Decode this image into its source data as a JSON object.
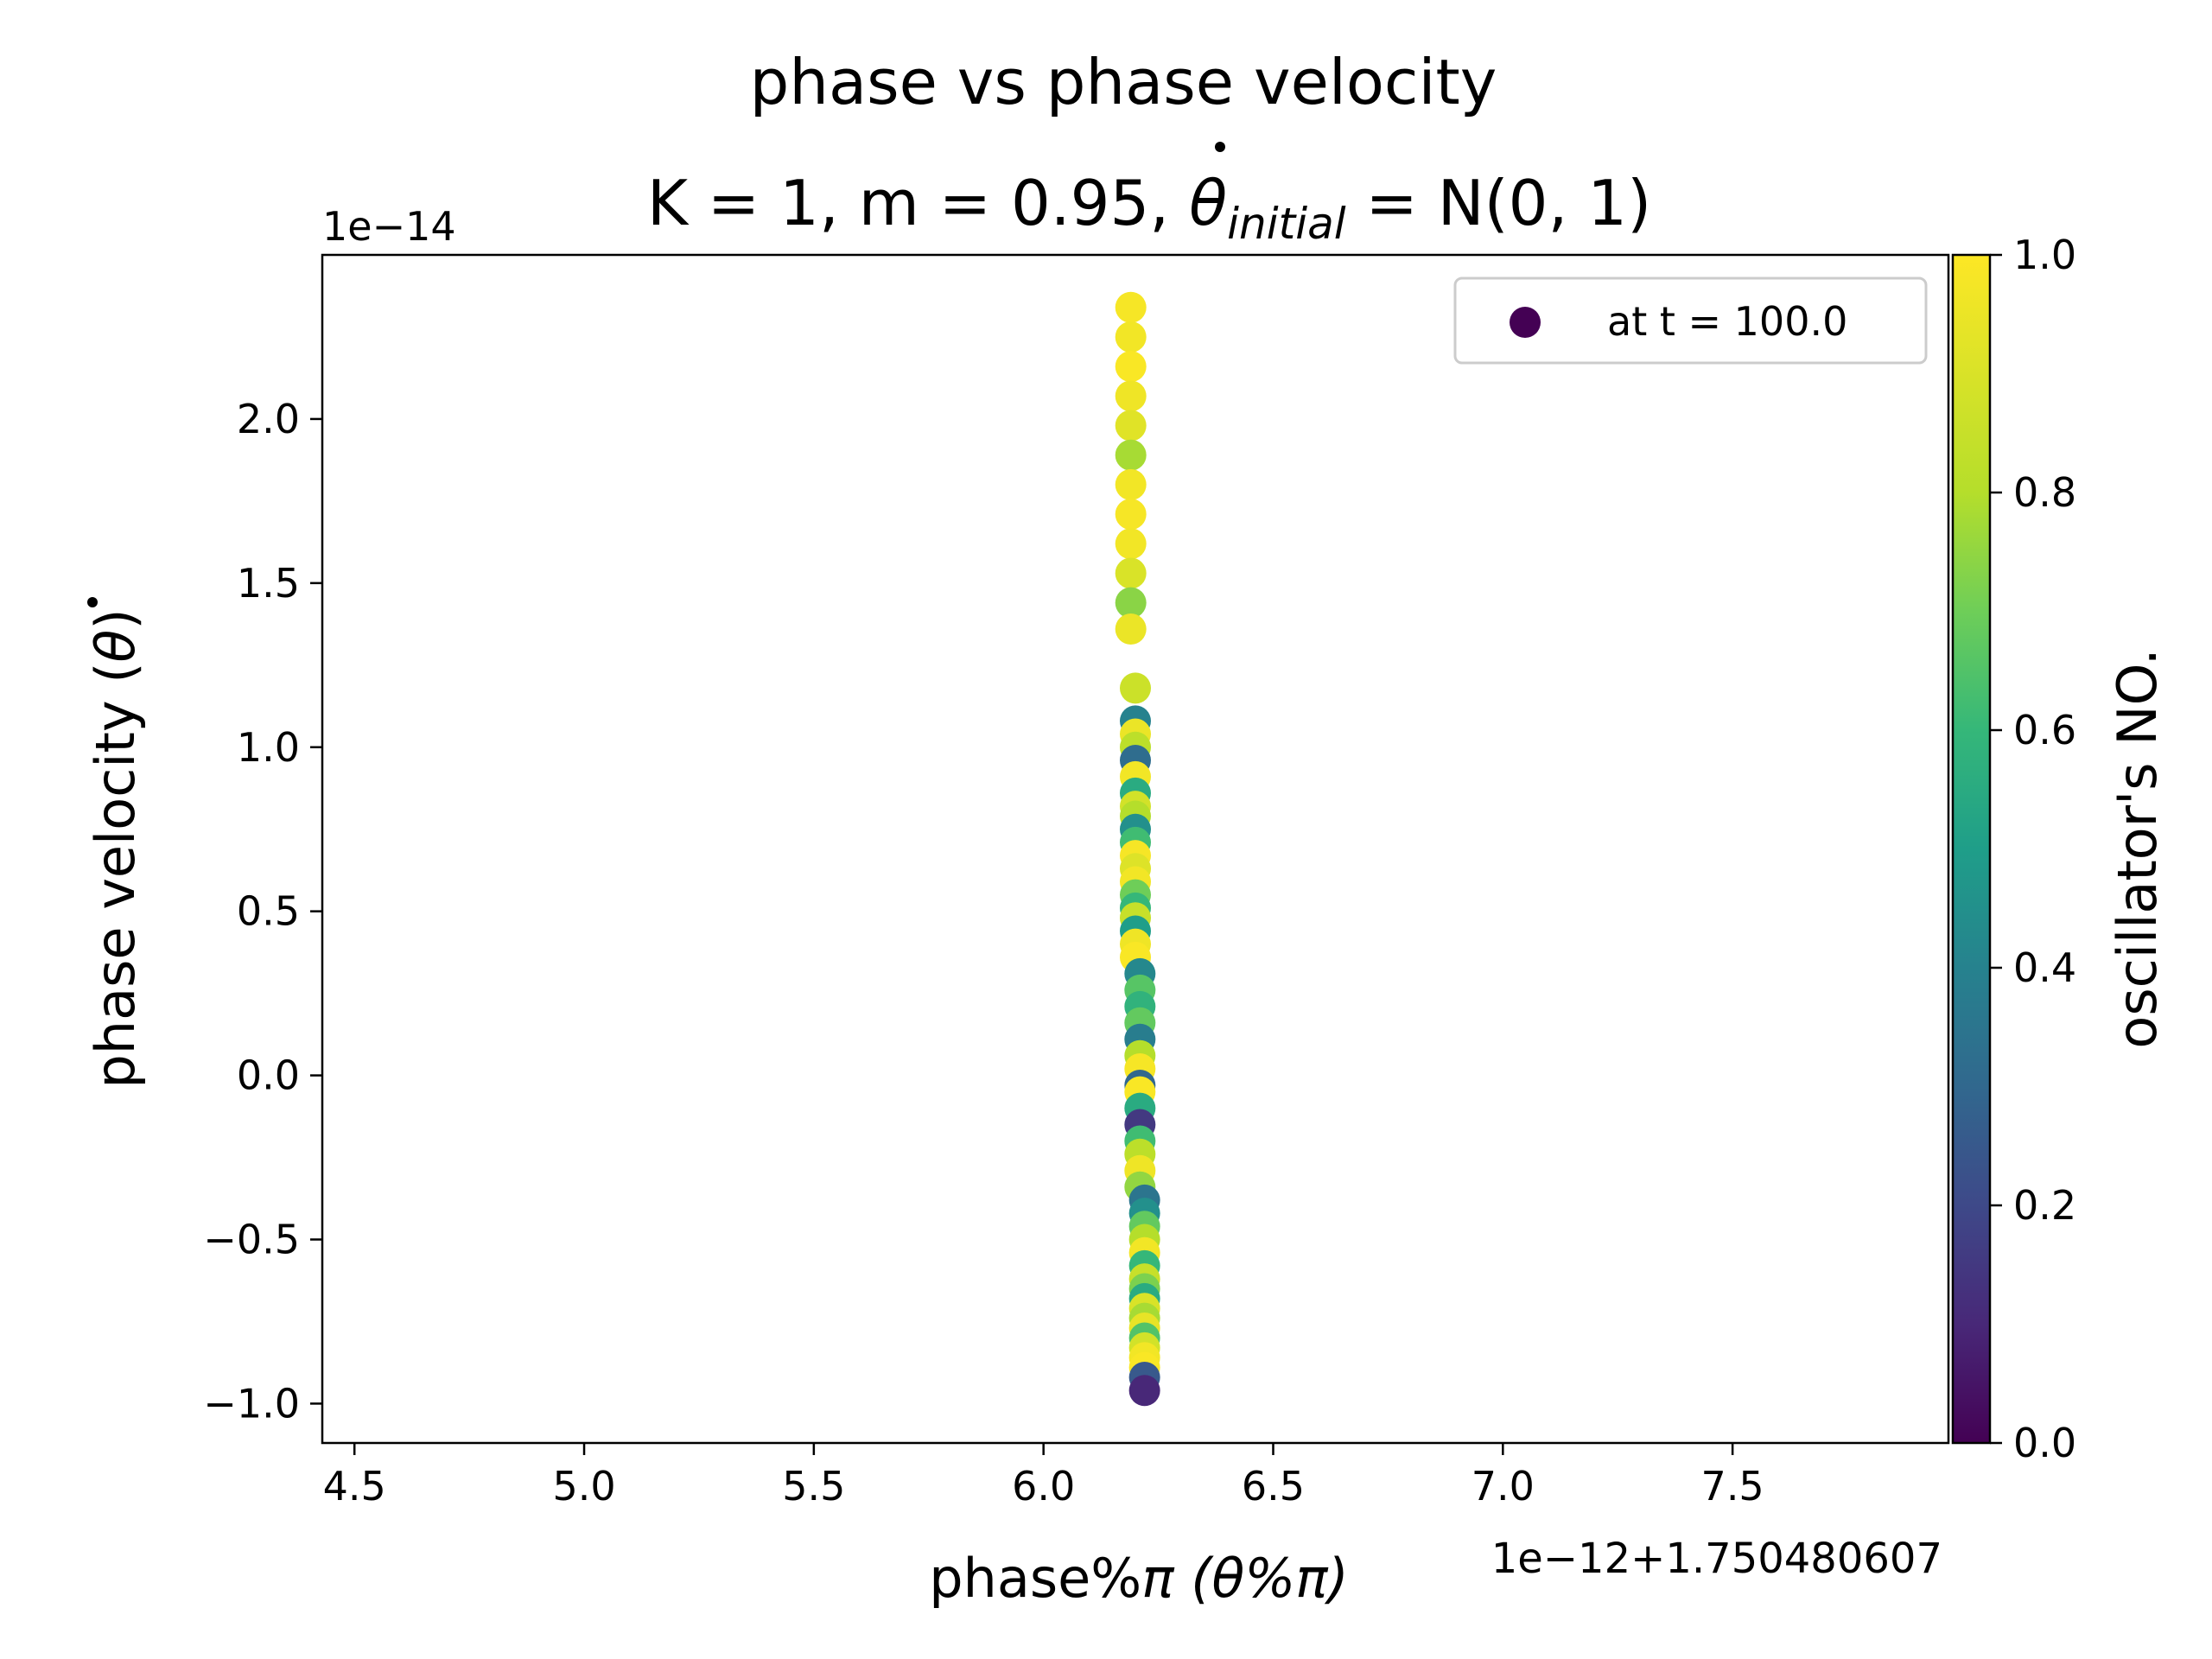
{
  "chart_data": {
    "type": "scatter",
    "title_line1": "phase vs phase velocity",
    "title_line2": {
      "prefix": "K = 1, m = 0.95, ",
      "symbol": "θ",
      "subscript": "initial",
      "suffix": " = N(0, 1)"
    },
    "xlabel": {
      "text": "phase%",
      "math": "π (θ%π)"
    },
    "ylabel": {
      "text": "phase velocity (",
      "math": "θ",
      "close": ")"
    },
    "x_offset_label": "1e−12+1.750480607",
    "y_scale_label": "1e−14",
    "xlim": [
      4.43,
      7.97
    ],
    "ylim": [
      -1.12,
      2.5
    ],
    "x_ticks": [
      4.5,
      5.0,
      5.5,
      6.0,
      6.5,
      7.0,
      7.5
    ],
    "x_tick_labels": [
      "4.5",
      "5.0",
      "5.5",
      "6.0",
      "6.5",
      "7.0",
      "7.5"
    ],
    "y_ticks": [
      -1.0,
      -0.5,
      0.0,
      0.5,
      1.0,
      1.5,
      2.0
    ],
    "y_tick_labels": [
      "−1.0",
      "−0.5",
      "0.0",
      "0.5",
      "1.0",
      "1.5",
      "2.0"
    ],
    "legend": {
      "label": "at t = 100.0",
      "marker_color": "#440154",
      "placement": "upper right"
    },
    "colorbar": {
      "label": "oscillator's NO.",
      "colormap": "viridis",
      "range": [
        0,
        1
      ],
      "ticks": [
        0.0,
        0.2,
        0.4,
        0.6,
        0.8,
        1.0
      ],
      "tick_labels": [
        "0.0",
        "0.2",
        "0.4",
        "0.6",
        "0.8",
        "1.0"
      ]
    },
    "points": [
      {
        "x": 6.19,
        "y": 2.34,
        "c": 0.98
      },
      {
        "x": 6.19,
        "y": 2.25,
        "c": 0.97
      },
      {
        "x": 6.19,
        "y": 2.16,
        "c": 0.99
      },
      {
        "x": 6.19,
        "y": 2.07,
        "c": 0.96
      },
      {
        "x": 6.19,
        "y": 1.98,
        "c": 0.92
      },
      {
        "x": 6.19,
        "y": 1.89,
        "c": 0.78
      },
      {
        "x": 6.19,
        "y": 1.8,
        "c": 0.97
      },
      {
        "x": 6.19,
        "y": 1.71,
        "c": 0.98
      },
      {
        "x": 6.19,
        "y": 1.62,
        "c": 0.97
      },
      {
        "x": 6.19,
        "y": 1.53,
        "c": 0.9
      },
      {
        "x": 6.19,
        "y": 1.44,
        "c": 0.74
      },
      {
        "x": 6.19,
        "y": 1.36,
        "c": 0.95
      },
      {
        "x": 6.2,
        "y": 1.18,
        "c": 0.86
      },
      {
        "x": 6.2,
        "y": 1.08,
        "c": 0.4
      },
      {
        "x": 6.2,
        "y": 1.04,
        "c": 0.95
      },
      {
        "x": 6.2,
        "y": 1.0,
        "c": 0.82
      },
      {
        "x": 6.2,
        "y": 0.96,
        "c": 0.32
      },
      {
        "x": 6.2,
        "y": 0.91,
        "c": 0.97
      },
      {
        "x": 6.2,
        "y": 0.86,
        "c": 0.55
      },
      {
        "x": 6.2,
        "y": 0.82,
        "c": 0.88
      },
      {
        "x": 6.2,
        "y": 0.79,
        "c": 0.8
      },
      {
        "x": 6.2,
        "y": 0.75,
        "c": 0.45
      },
      {
        "x": 6.2,
        "y": 0.71,
        "c": 0.62
      },
      {
        "x": 6.2,
        "y": 0.67,
        "c": 0.98
      },
      {
        "x": 6.2,
        "y": 0.63,
        "c": 0.91
      },
      {
        "x": 6.2,
        "y": 0.59,
        "c": 0.97
      },
      {
        "x": 6.2,
        "y": 0.55,
        "c": 0.7
      },
      {
        "x": 6.2,
        "y": 0.51,
        "c": 0.6
      },
      {
        "x": 6.2,
        "y": 0.48,
        "c": 0.85
      },
      {
        "x": 6.2,
        "y": 0.44,
        "c": 0.5
      },
      {
        "x": 6.2,
        "y": 0.4,
        "c": 0.96
      },
      {
        "x": 6.2,
        "y": 0.36,
        "c": 0.99
      },
      {
        "x": 6.21,
        "y": 0.31,
        "c": 0.42
      },
      {
        "x": 6.21,
        "y": 0.26,
        "c": 0.66
      },
      {
        "x": 6.21,
        "y": 0.21,
        "c": 0.58
      },
      {
        "x": 6.21,
        "y": 0.16,
        "c": 0.68
      },
      {
        "x": 6.21,
        "y": 0.11,
        "c": 0.38
      },
      {
        "x": 6.21,
        "y": 0.06,
        "c": 0.8
      },
      {
        "x": 6.21,
        "y": 0.02,
        "c": 0.98
      },
      {
        "x": 6.21,
        "y": -0.03,
        "c": 0.3
      },
      {
        "x": 6.21,
        "y": -0.05,
        "c": 0.99
      },
      {
        "x": 6.21,
        "y": -0.1,
        "c": 0.55
      },
      {
        "x": 6.21,
        "y": -0.15,
        "c": 0.15
      },
      {
        "x": 6.21,
        "y": -0.2,
        "c": 0.62
      },
      {
        "x": 6.21,
        "y": -0.24,
        "c": 0.82
      },
      {
        "x": 6.21,
        "y": -0.29,
        "c": 0.96
      },
      {
        "x": 6.21,
        "y": -0.34,
        "c": 0.75
      },
      {
        "x": 6.22,
        "y": -0.38,
        "c": 0.35
      },
      {
        "x": 6.22,
        "y": -0.42,
        "c": 0.45
      },
      {
        "x": 6.22,
        "y": -0.46,
        "c": 0.68
      },
      {
        "x": 6.22,
        "y": -0.5,
        "c": 0.8
      },
      {
        "x": 6.22,
        "y": -0.54,
        "c": 0.97
      },
      {
        "x": 6.22,
        "y": -0.58,
        "c": 0.6
      },
      {
        "x": 6.22,
        "y": -0.62,
        "c": 0.85
      },
      {
        "x": 6.22,
        "y": -0.65,
        "c": 0.72
      },
      {
        "x": 6.22,
        "y": -0.68,
        "c": 0.55
      },
      {
        "x": 6.22,
        "y": -0.71,
        "c": 0.9
      },
      {
        "x": 6.22,
        "y": -0.74,
        "c": 0.78
      },
      {
        "x": 6.22,
        "y": -0.77,
        "c": 0.94
      },
      {
        "x": 6.22,
        "y": -0.8,
        "c": 0.65
      },
      {
        "x": 6.22,
        "y": -0.83,
        "c": 0.88
      },
      {
        "x": 6.22,
        "y": -0.86,
        "c": 0.97
      },
      {
        "x": 6.22,
        "y": -0.89,
        "c": 0.99
      },
      {
        "x": 6.22,
        "y": -0.92,
        "c": 0.25
      },
      {
        "x": 6.22,
        "y": -0.96,
        "c": 0.1
      }
    ]
  }
}
